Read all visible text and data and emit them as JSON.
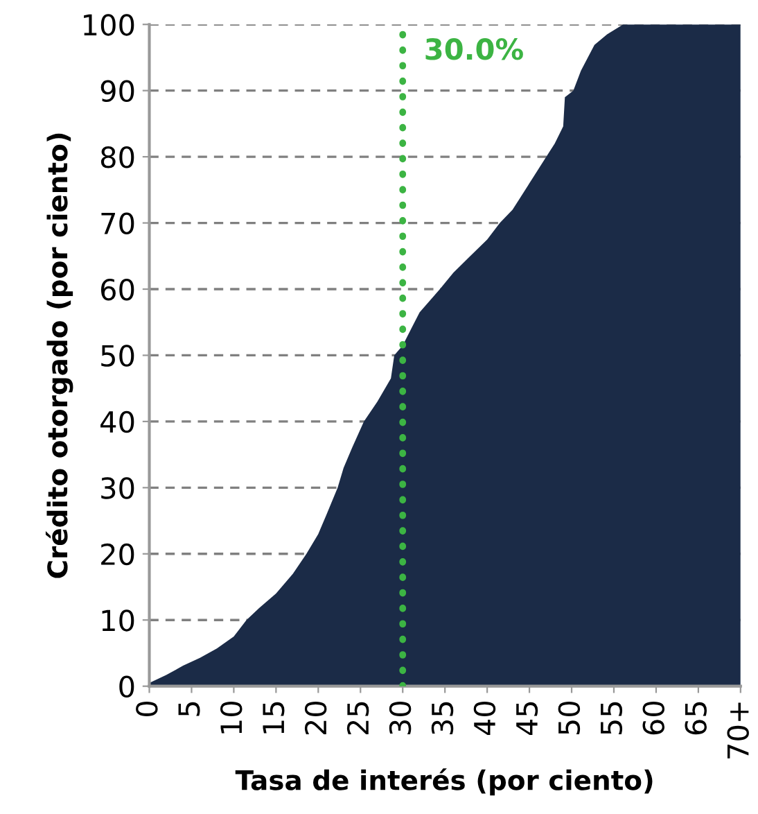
{
  "chart_data": {
    "type": "area",
    "xlabel": "Tasa de interés (por ciento)",
    "ylabel": "Crédito otorgado (por ciento)",
    "x": [
      0,
      2,
      4,
      6,
      8,
      10,
      11.5,
      13,
      15,
      17,
      18.6,
      20,
      21,
      22.3,
      23,
      24,
      25.4,
      27,
      28.6,
      29,
      30,
      31,
      32,
      34.4,
      36,
      38,
      40,
      41.5,
      43,
      44,
      45,
      47,
      48,
      49,
      49.2,
      50.2,
      51.1,
      52.7,
      54.2,
      56.1,
      70
    ],
    "series": [
      {
        "color": "#1b2b47",
        "values": [
          0.5,
          1.7,
          3.1,
          4.3,
          5.7,
          7.5,
          10,
          11.8,
          14,
          17,
          20,
          23,
          26,
          30,
          33,
          36,
          40,
          43,
          46.5,
          50,
          51.5,
          54,
          56.5,
          60,
          62.5,
          65,
          67.5,
          70,
          72,
          74,
          76,
          80,
          82,
          84.6,
          89,
          90,
          93,
          96.9,
          98.5,
          100,
          100
        ]
      }
    ],
    "xlim": [
      0,
      70
    ],
    "xticks": [
      0,
      5,
      10,
      15,
      20,
      25,
      30,
      35,
      40,
      45,
      50,
      55,
      60,
      65,
      {
        "value": 70,
        "label": "70+"
      }
    ],
    "ylim": [
      0,
      100
    ],
    "yticks": [
      0,
      10,
      20,
      30,
      40,
      50,
      60,
      70,
      80,
      90,
      100
    ],
    "grid": "y",
    "legend": false,
    "ref_lines": [
      {
        "axis": "x",
        "value": 30,
        "label": "30.0%",
        "color": "#3cb443",
        "line_style": "dotted"
      }
    ]
  }
}
